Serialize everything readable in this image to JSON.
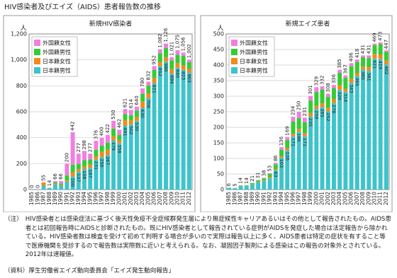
{
  "title": "HIV感染者及びエイズ（AIDS）患者報告数の推移",
  "chart_data": [
    {
      "type": "bar",
      "stacked": true,
      "title": "新規HIV感染者",
      "y_unit": "人",
      "grid": true,
      "legend": "upper left",
      "categories": [
        "1985",
        "1986",
        "1987",
        "1988",
        "1989",
        "1990",
        "1991",
        "1992",
        "1993",
        "1994",
        "1995",
        "1996",
        "1997",
        "1998",
        "1999",
        "2000",
        "2001",
        "2002",
        "2003",
        "2004",
        "2005",
        "2006",
        "2007",
        "2008",
        "2009",
        "2010",
        "2011",
        "2012"
      ],
      "series": [
        {
          "name": "外国籍女性",
          "color": "#f07fe0",
          "values": [
            0,
            0,
            0,
            0,
            10,
            20,
            90,
            250,
            80,
            70,
            45,
            70,
            60,
            60,
            60,
            40,
            40,
            40,
            30,
            40,
            30,
            30,
            30,
            35,
            25,
            35,
            25,
            20
          ]
        },
        {
          "name": "外国籍男性",
          "color": "#33cc33",
          "values": [
            0,
            0,
            0,
            0,
            10,
            10,
            40,
            60,
            40,
            50,
            40,
            50,
            50,
            55,
            60,
            40,
            46,
            40,
            50,
            60,
            60,
            60,
            70,
            70,
            67,
            65,
            74,
            52
          ]
        },
        {
          "name": "日本籍女性",
          "color": "#f08a1e",
          "values": [
            0,
            0,
            25,
            2,
            6,
            6,
            10,
            32,
            20,
            20,
            25,
            25,
            40,
            40,
            31,
            24,
            44,
            32,
            30,
            50,
            36,
            41,
            30,
            35,
            35,
            35,
            34,
            27
          ]
        },
        {
          "name": "日本籍男性",
          "color": "#3cc4cc",
          "values": [
            0,
            0,
            30,
            12,
            40,
            30,
            60,
            100,
            137,
            158,
            167,
            231,
            250,
            267,
            379,
            358,
            491,
            502,
            530,
            630,
            706,
            821,
            952,
            986,
            894,
            940,
            923,
            903
          ]
        }
      ],
      "totals": [
        0,
        0,
        55,
        14,
        66,
        66,
        200,
        442,
        277,
        298,
        277,
        376,
        400,
        422,
        530,
        462,
        621,
        614,
        640,
        780,
        832,
        952,
        1082,
        1126,
        1021,
        1075,
        1056,
        1002
      ],
      "total_labels": [
        "0",
        "0",
        "55",
        "14",
        "66",
        "66",
        "200",
        "442",
        "277",
        "298",
        "277",
        "376",
        "400",
        "422",
        "530",
        "462",
        "621",
        "614",
        "640",
        "780",
        "832",
        "952",
        "1,082",
        "1,126",
        "1,021",
        "1,075",
        "1,056",
        "1,002"
      ],
      "ylim": [
        0,
        1200
      ],
      "yticks": [
        0,
        200,
        400,
        600,
        800,
        {
          "value": 1000,
          "label": "1,000"
        },
        {
          "value": 1200,
          "label": "1,200"
        }
      ]
    },
    {
      "type": "bar",
      "stacked": true,
      "title": "新規エイズ患者",
      "y_unit": "人",
      "grid": true,
      "legend": "upper left",
      "categories": [
        "1985",
        "1986",
        "1987",
        "1988",
        "1989",
        "1990",
        "1991",
        "1992",
        "1993",
        "1994",
        "1995",
        "1996",
        "1997",
        "1998",
        "1999",
        "2000",
        "2001",
        "2002",
        "2003",
        "2004",
        "2005",
        "2006",
        "2007",
        "2008",
        "2009",
        "2010",
        "2011",
        "2012"
      ],
      "series": [
        {
          "name": "外国籍女性",
          "color": "#f07fe0",
          "values": [
            0,
            0,
            0,
            0,
            0,
            1,
            2,
            3,
            5,
            8,
            10,
            15,
            20,
            15,
            15,
            15,
            10,
            10,
            10,
            10,
            8,
            10,
            8,
            6,
            8,
            5,
            5,
            5
          ]
        },
        {
          "name": "外国籍男性",
          "color": "#33cc33",
          "values": [
            0,
            0,
            1,
            2,
            3,
            4,
            6,
            10,
            15,
            20,
            25,
            40,
            35,
            35,
            40,
            45,
            45,
            35,
            35,
            40,
            35,
            40,
            35,
            30,
            30,
            28,
            35,
            28
          ]
        },
        {
          "name": "日本籍女性",
          "color": "#f08a1e",
          "values": [
            0,
            0,
            1,
            1,
            1,
            2,
            2,
            4,
            3,
            5,
            8,
            8,
            9,
            10,
            11,
            10,
            12,
            11,
            13,
            15,
            10,
            13,
            10,
            10,
            12,
            15,
            14,
            12
          ]
        },
        {
          "name": "日本籍男性",
          "color": "#3cc4cc",
          "values": [
            6,
            5,
            12,
            11,
            17,
            24,
            28,
            36,
            63,
            103,
            126,
            171,
            186,
            171,
            235,
            259,
            265,
            252,
            278,
            320,
            314,
            343,
            365,
            385,
            381,
            421,
            419,
            402
          ]
        }
      ],
      "totals": [
        6,
        5,
        14,
        14,
        21,
        31,
        38,
        53,
        86,
        136,
        169,
        234,
        250,
        231,
        301,
        329,
        332,
        308,
        336,
        385,
        367,
        406,
        418,
        431,
        431,
        469,
        473,
        447
      ],
      "total_labels": [
        "6",
        "5",
        "14",
        "14",
        "21",
        "31",
        "38",
        "53",
        "86",
        "136",
        "169",
        "234",
        "250",
        "231",
        "301",
        "329",
        "332",
        "308",
        "336",
        "385",
        "367",
        "406",
        "418",
        "431",
        "431",
        "469",
        "473",
        "447"
      ],
      "ylim": [
        0,
        500
      ],
      "yticks": [
        0,
        50,
        100,
        150,
        200,
        250,
        300,
        350,
        400,
        450,
        500
      ]
    }
  ],
  "notes": {
    "label": "（注）",
    "text": "HIV感染者とは感染症法に基づく後天性免疫不全症候群発生届により無症候性キャリアあるいはその他として報告されたもの。AIDS患者とは初回報告時にAIDSと診断されたもの。既にHIV感染者として報告されている症例がAIDSを発症した場合は法定報告から除かれている。HIV感染者数は検査を受けて初めて判明する場合が多いので実際は報告以上に多く、AIDS患者は特定の症状を有すること等で医療機関を受診するので報告数は実際数に近いと考えられる。なお、凝固因子製剤による感染はこの報告の対象外とされている。2012年は速報値。"
  },
  "source": "（資料）厚生労働省エイズ動向委員会「エイズ発生動向報告」"
}
